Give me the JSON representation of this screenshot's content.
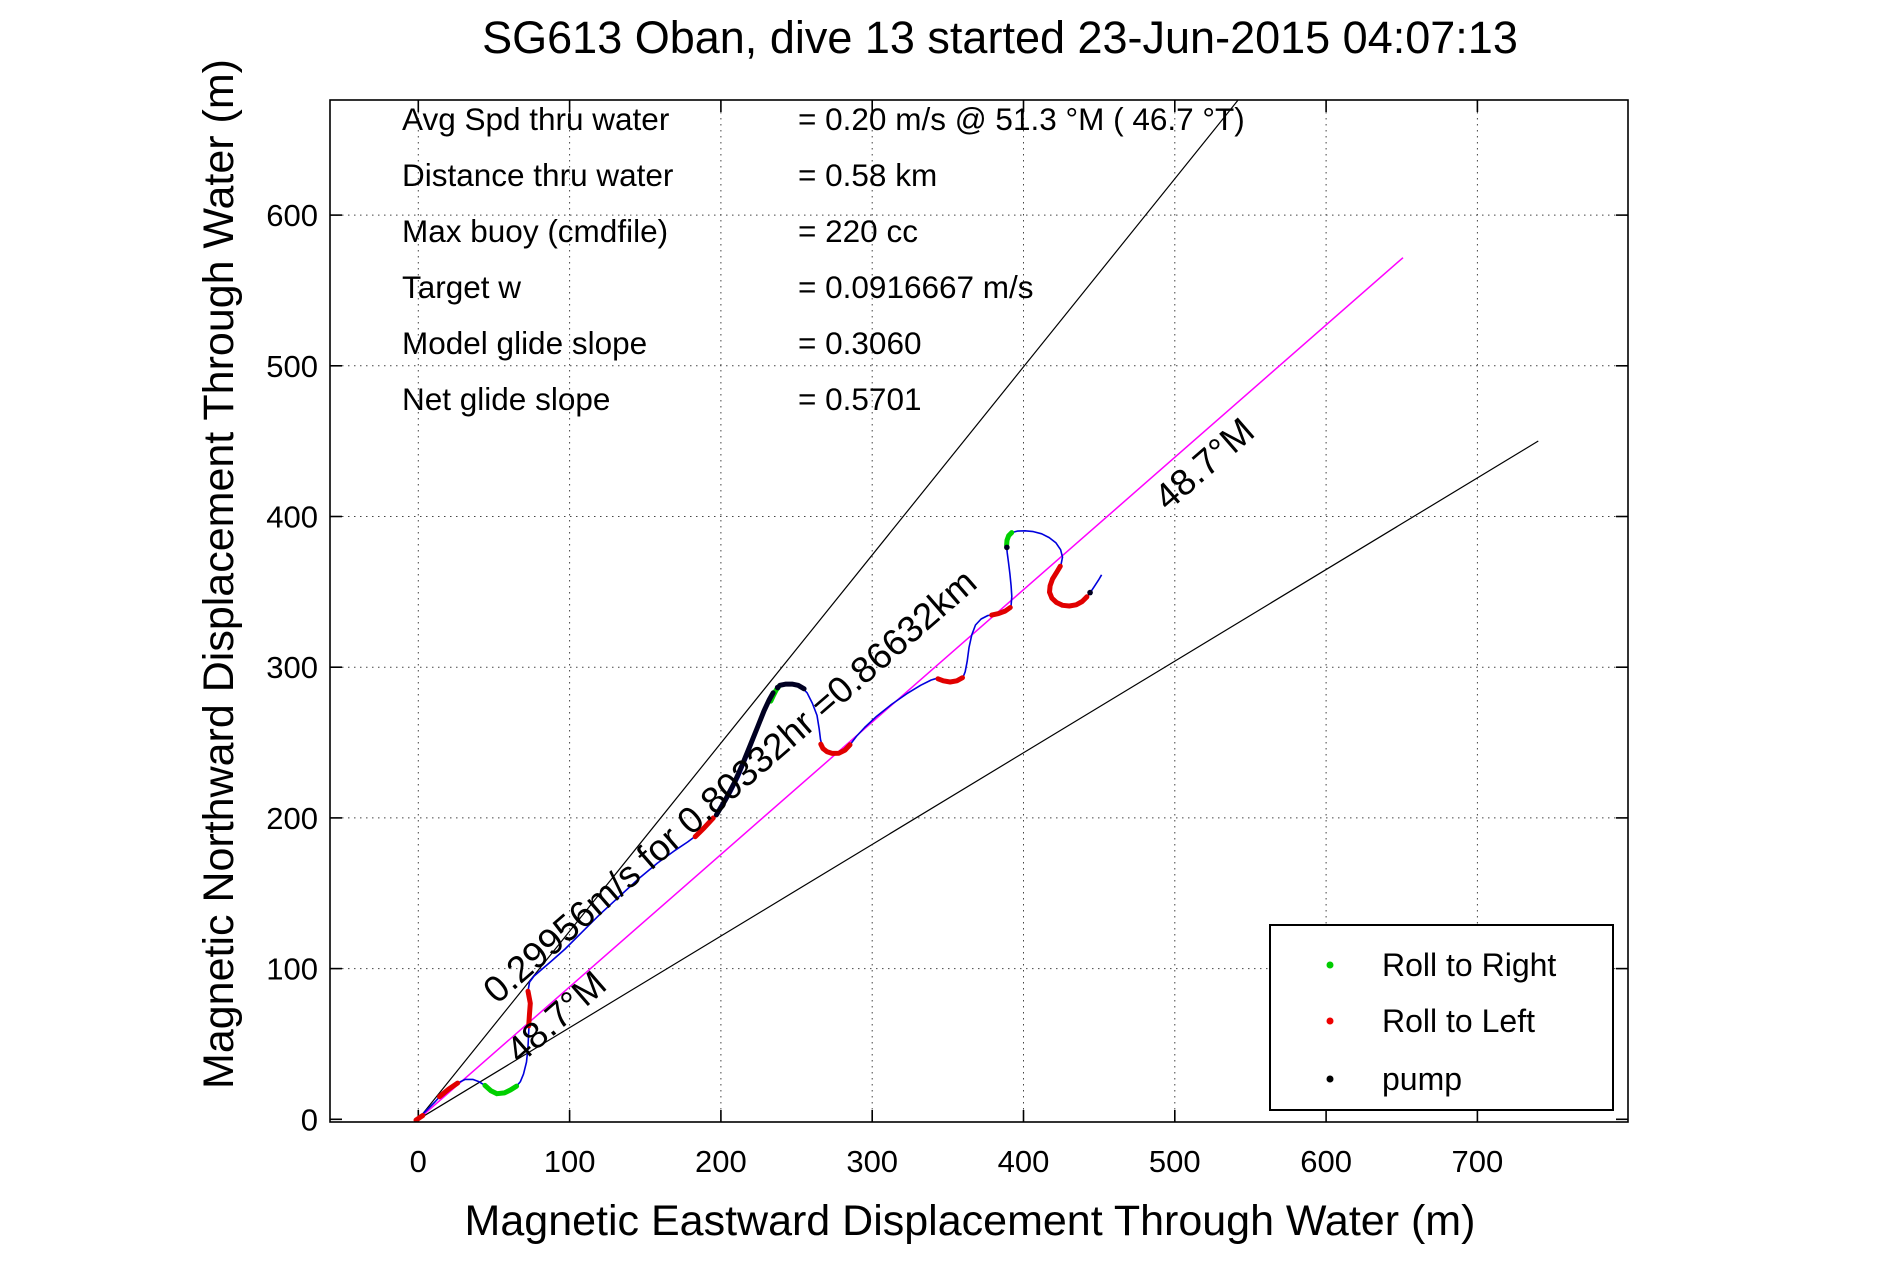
{
  "title": "SG613 Oban, dive 13 started 23-Jun-2015 04:07:13",
  "axes": {
    "xlabel": "Magnetic Eastward Displacement Through Water (m)",
    "ylabel": "Magnetic Northward Displacement Through Water (m)",
    "x_ticks": [
      0,
      100,
      200,
      300,
      400,
      500,
      600,
      700
    ],
    "y_ticks": [
      0,
      100,
      200,
      300,
      400,
      500,
      600
    ]
  },
  "info_block": {
    "rows": [
      {
        "label": "Avg Spd thru water",
        "value": "=  0.20 m/s @  51.3 °M ( 46.7 °T)"
      },
      {
        "label": "Distance thru water",
        "value": "=  0.58 km"
      },
      {
        "label": "Max buoy (cmdfile)",
        "value": "= 220 cc"
      },
      {
        "label": "Target w",
        "value": "= 0.0916667 m/s"
      },
      {
        "label": "Model glide slope",
        "value": "= 0.3060"
      },
      {
        "label": "Net glide slope",
        "value": "= 0.5701"
      }
    ]
  },
  "annotations": {
    "speed_line": "0.29956m/s for 0.80332hr =0.86632km",
    "bearing_lower": "48.7°M",
    "bearing_upper": "48.7°M"
  },
  "legend": {
    "items": [
      {
        "label": "Roll to Right",
        "color": "#00cc00"
      },
      {
        "label": "Roll to Left",
        "color": "#ee0000"
      },
      {
        "label": "pump",
        "color": "#000000"
      }
    ]
  },
  "colors": {
    "track": "#0000dd",
    "roll_right": "#00d000",
    "roll_left": "#e10000",
    "pump": "#000022",
    "desired_course": "#ff00ff",
    "fan_line": "#000000",
    "grid": "#444444"
  },
  "chart_data": {
    "type": "line",
    "title": "SG613 Oban, dive 13 started 23-Jun-2015 04:07:13",
    "xlabel": "Magnetic Eastward Displacement Through Water (m)",
    "ylabel": "Magnetic Northward Displacement Through Water (m)",
    "xlim": [
      -58,
      797
    ],
    "ylim": [
      -2,
      676
    ],
    "grid": true,
    "x_ticks": [
      0,
      100,
      200,
      300,
      400,
      500,
      600,
      700
    ],
    "y_ticks": [
      0,
      100,
      200,
      300,
      400,
      500,
      600
    ],
    "fan_lines": [
      {
        "name": "bearing-minus-10",
        "bearing_deg": 38.7,
        "length_m": 866.32,
        "color": "#000000",
        "width": 1.2
      },
      {
        "name": "desired-course-48.7M",
        "bearing_deg": 48.7,
        "length_m": 866.32,
        "color": "#ff00ff",
        "width": 1.5
      },
      {
        "name": "bearing-plus-10",
        "bearing_deg": 58.7,
        "length_m": 866.32,
        "color": "#000000",
        "width": 1.2
      }
    ],
    "track": {
      "name": "displacement-through-water-track",
      "color": "#0000dd",
      "points": [
        [
          0,
          0
        ],
        [
          3,
          3.5
        ],
        [
          7,
          7.5
        ],
        [
          11,
          11.5
        ],
        [
          15,
          16
        ],
        [
          20,
          20
        ],
        [
          26,
          24
        ],
        [
          31,
          26.5
        ],
        [
          36,
          26.5
        ],
        [
          40,
          25
        ],
        [
          44,
          22.5
        ],
        [
          48,
          19
        ],
        [
          52,
          17
        ],
        [
          57,
          17.5
        ],
        [
          61,
          19.5
        ],
        [
          65,
          22
        ],
        [
          67.5,
          25
        ],
        [
          69.5,
          30
        ],
        [
          71.5,
          38
        ],
        [
          72.5,
          48
        ],
        [
          73,
          58
        ],
        [
          73.5,
          68
        ],
        [
          74,
          77
        ],
        [
          72.5,
          85
        ],
        [
          73.5,
          91
        ],
        [
          76.5,
          95
        ],
        [
          81,
          99
        ],
        [
          88,
          105
        ],
        [
          97,
          113
        ],
        [
          108,
          124
        ],
        [
          120,
          136
        ],
        [
          133,
          148
        ],
        [
          146,
          160
        ],
        [
          158,
          170
        ],
        [
          169,
          178
        ],
        [
          178,
          184
        ],
        [
          186,
          190
        ],
        [
          194,
          199
        ],
        [
          199,
          204
        ],
        [
          206,
          215
        ],
        [
          212,
          227
        ],
        [
          217,
          239
        ],
        [
          222,
          252
        ],
        [
          227,
          265
        ],
        [
          231,
          275
        ],
        [
          234,
          281
        ],
        [
          236,
          285
        ],
        [
          238.5,
          287.7
        ],
        [
          241,
          288.7
        ],
        [
          245,
          289
        ],
        [
          249,
          288.5
        ],
        [
          253,
          287
        ],
        [
          257,
          283
        ],
        [
          260.5,
          276
        ],
        [
          263.5,
          268
        ],
        [
          265,
          259
        ],
        [
          265.8,
          252
        ],
        [
          267,
          247.5
        ],
        [
          269.5,
          244.5
        ],
        [
          273.5,
          243
        ],
        [
          278.5,
          243
        ],
        [
          282.5,
          245.2
        ],
        [
          285.5,
          248.8
        ],
        [
          289.5,
          254
        ],
        [
          295,
          260
        ],
        [
          303,
          267.5
        ],
        [
          313,
          275.5
        ],
        [
          323,
          282.5
        ],
        [
          332,
          288
        ],
        [
          339,
          291.5
        ],
        [
          343,
          292.7
        ],
        [
          347,
          291
        ],
        [
          351.5,
          290.2
        ],
        [
          356,
          291
        ],
        [
          360,
          293.3
        ],
        [
          361.5,
          297
        ],
        [
          362.8,
          304
        ],
        [
          364,
          313
        ],
        [
          365.8,
          321.5
        ],
        [
          368.3,
          328
        ],
        [
          372,
          332
        ],
        [
          376.5,
          334.3
        ],
        [
          381,
          335
        ],
        [
          385.5,
          336
        ],
        [
          389.5,
          338
        ],
        [
          391.8,
          341
        ],
        [
          392.3,
          347
        ],
        [
          391.8,
          354
        ],
        [
          391,
          362
        ],
        [
          390,
          370
        ],
        [
          389.2,
          376
        ],
        [
          388.8,
          380.5
        ],
        [
          389.2,
          384.5
        ],
        [
          390.3,
          387.5
        ],
        [
          392.5,
          389.4
        ],
        [
          396,
          390.3
        ],
        [
          401,
          390.5
        ],
        [
          406.5,
          390
        ],
        [
          412,
          388.5
        ],
        [
          417,
          386
        ],
        [
          421.5,
          382.5
        ],
        [
          424.5,
          378
        ],
        [
          425.8,
          373
        ],
        [
          424.8,
          368
        ],
        [
          422.3,
          363.5
        ],
        [
          419.5,
          359
        ],
        [
          417.7,
          354.5
        ],
        [
          417.2,
          350
        ],
        [
          418.7,
          346
        ],
        [
          421.7,
          343
        ],
        [
          425.7,
          341.2
        ],
        [
          430.2,
          340.7
        ],
        [
          434.7,
          341.5
        ],
        [
          438.7,
          343.6
        ],
        [
          441.9,
          346.6
        ],
        [
          444.4,
          350
        ],
        [
          447,
          353.8
        ],
        [
          449.6,
          357.8
        ],
        [
          451.6,
          361.3
        ]
      ]
    },
    "overlays": [
      {
        "kind": "roll-left",
        "color": "#e10000",
        "points": [
          [
            -1.5,
            -0.5
          ],
          [
            3,
            2.5
          ]
        ]
      },
      {
        "kind": "roll-left",
        "color": "#e10000",
        "points": [
          [
            14,
            15
          ],
          [
            20,
            20
          ],
          [
            26,
            24
          ]
        ]
      },
      {
        "kind": "roll-left",
        "color": "#e10000",
        "points": [
          [
            73,
            62
          ],
          [
            73.5,
            70
          ],
          [
            74,
            77
          ],
          [
            72.5,
            85
          ]
        ]
      },
      {
        "kind": "roll-left",
        "color": "#e10000",
        "points": [
          [
            183,
            187.5
          ],
          [
            189,
            193.5
          ],
          [
            195,
            200
          ]
        ]
      },
      {
        "kind": "roll-left",
        "color": "#e10000",
        "points": [
          [
            266,
            249
          ],
          [
            267.5,
            246
          ],
          [
            270,
            244
          ],
          [
            273.5,
            242.8
          ],
          [
            278,
            242.9
          ],
          [
            282,
            245
          ],
          [
            285.3,
            248.5
          ]
        ]
      },
      {
        "kind": "roll-left",
        "color": "#e10000",
        "points": [
          [
            343.5,
            292.3
          ],
          [
            347,
            291
          ],
          [
            351.5,
            290.2
          ],
          [
            356,
            291
          ],
          [
            359.7,
            293
          ]
        ]
      },
      {
        "kind": "roll-left",
        "color": "#e10000",
        "points": [
          [
            379,
            334.6
          ],
          [
            383.5,
            335.6
          ],
          [
            388,
            337.3
          ],
          [
            391.3,
            339.6
          ]
        ]
      },
      {
        "kind": "roll-left",
        "color": "#e10000",
        "points": [
          [
            424.3,
            367
          ],
          [
            421.8,
            362.8
          ],
          [
            419.2,
            358.5
          ],
          [
            417.6,
            354
          ],
          [
            417.2,
            349.8
          ],
          [
            418.8,
            345.8
          ],
          [
            421.8,
            342.9
          ],
          [
            425.8,
            341.1
          ],
          [
            430.3,
            340.6
          ],
          [
            434.8,
            341.4
          ],
          [
            438.8,
            343.6
          ],
          [
            441.9,
            346.7
          ]
        ]
      },
      {
        "kind": "roll-right",
        "color": "#00d000",
        "points": [
          [
            44,
            22.5
          ],
          [
            48,
            19
          ],
          [
            52,
            17
          ],
          [
            57,
            17.5
          ],
          [
            61,
            19.5
          ],
          [
            65,
            22
          ]
        ]
      },
      {
        "kind": "roll-right",
        "color": "#00d000",
        "points": [
          [
            233,
            277.5
          ],
          [
            234.8,
            281.5
          ],
          [
            236.5,
            284.8
          ],
          [
            238.5,
            287.5
          ]
        ]
      },
      {
        "kind": "roll-right",
        "color": "#00d000",
        "points": [
          [
            388.8,
            380.8
          ],
          [
            389.1,
            384.3
          ],
          [
            390.2,
            387.3
          ],
          [
            392.2,
            389.3
          ]
        ]
      },
      {
        "kind": "pump",
        "color": "#000022",
        "points": [
          [
            197,
            202
          ],
          [
            203,
            212
          ],
          [
            209,
            223.5
          ],
          [
            214.5,
            236
          ],
          [
            219.5,
            248.5
          ],
          [
            224.5,
            261
          ],
          [
            228.5,
            271
          ],
          [
            232,
            278.5
          ],
          [
            234.5,
            283
          ]
        ]
      },
      {
        "kind": "pump",
        "color": "#000022",
        "points": [
          [
            239,
            288
          ],
          [
            243,
            288.8
          ],
          [
            247,
            288.8
          ],
          [
            251,
            288
          ],
          [
            255,
            285.7
          ]
        ]
      }
    ],
    "pump_dots": [
      [
        389,
        379.5
      ],
      [
        444,
        349.5
      ],
      [
        237.5,
        286.5
      ]
    ]
  }
}
